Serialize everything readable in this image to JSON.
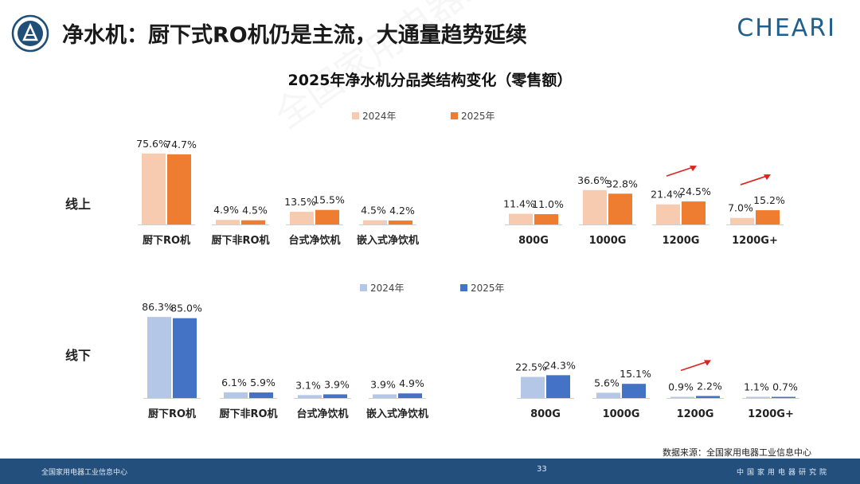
{
  "header": {
    "title": "净水机：厨下式RO机仍是主流，大通量趋势延续",
    "brand": "CHEARI"
  },
  "chart_title": "2025年净水机分品类结构变化（零售额）",
  "watermark": "全国家用电器工业信息中心",
  "colors": {
    "online_2024": "#f7cbb0",
    "online_2025": "#ee7d31",
    "offline_2024": "#b4c7e6",
    "offline_2025": "#4472c4",
    "arrow": "#e0231c",
    "footer": "#234f7d"
  },
  "chart_data": [
    {
      "type": "bar",
      "panel": "online",
      "row_label": "线上",
      "legend": [
        "2024年",
        "2025年"
      ],
      "groups": [
        {
          "categories": [
            "厨下RO机",
            "厨下非RO机",
            "台式净饮机",
            "嵌入式净饮机"
          ],
          "series": [
            {
              "name": "2024年",
              "values": [
                75.6,
                4.9,
                13.5,
                4.5
              ],
              "labels": [
                "75.6%",
                "4.9%",
                "13.5%",
                "4.5%"
              ]
            },
            {
              "name": "2025年",
              "values": [
                74.7,
                4.5,
                15.5,
                4.2
              ],
              "labels": [
                "74.7%",
                "4.5%",
                "15.5%",
                "4.2%"
              ]
            }
          ]
        },
        {
          "categories": [
            "800G",
            "1000G",
            "1200G",
            "1200G+"
          ],
          "series": [
            {
              "name": "2024年",
              "values": [
                11.4,
                36.6,
                21.4,
                7.0
              ],
              "labels": [
                "11.4%",
                "36.6%",
                "21.4%",
                "7.0%"
              ]
            },
            {
              "name": "2025年",
              "values": [
                11.0,
                32.8,
                24.5,
                15.2
              ],
              "labels": [
                "11.0%",
                "32.8%",
                "24.5%",
                "15.2%"
              ]
            }
          ],
          "arrows_on": [
            "1200G",
            "1200G+"
          ]
        }
      ]
    },
    {
      "type": "bar",
      "panel": "offline",
      "row_label": "线下",
      "legend": [
        "2024年",
        "2025年"
      ],
      "groups": [
        {
          "categories": [
            "厨下RO机",
            "厨下非RO机",
            "台式净饮机",
            "嵌入式净饮机"
          ],
          "series": [
            {
              "name": "2024年",
              "values": [
                86.3,
                6.1,
                3.1,
                3.9
              ],
              "labels": [
                "86.3%",
                "6.1%",
                "3.1%",
                "3.9%"
              ]
            },
            {
              "name": "2025年",
              "values": [
                85.0,
                5.9,
                3.9,
                4.9
              ],
              "labels": [
                "85.0%",
                "5.9%",
                "3.9%",
                "4.9%"
              ]
            }
          ]
        },
        {
          "categories": [
            "800G",
            "1000G",
            "1200G",
            "1200G+"
          ],
          "series": [
            {
              "name": "2024年",
              "values": [
                22.5,
                5.6,
                0.9,
                1.1
              ],
              "labels": [
                "22.5%",
                "5.6%",
                "0.9%",
                "1.1%"
              ]
            },
            {
              "name": "2025年",
              "values": [
                24.3,
                15.1,
                2.2,
                0.7
              ],
              "labels": [
                "24.3%",
                "15.1%",
                "2.2%",
                "0.7%"
              ]
            }
          ],
          "arrows_on": [
            "1200G"
          ]
        }
      ]
    }
  ],
  "source": "数据来源：全国家用电器工业信息中心",
  "footer": {
    "left": "全国家用电器工业信息中心",
    "page": "33",
    "right": "中国家用电器研究院"
  }
}
